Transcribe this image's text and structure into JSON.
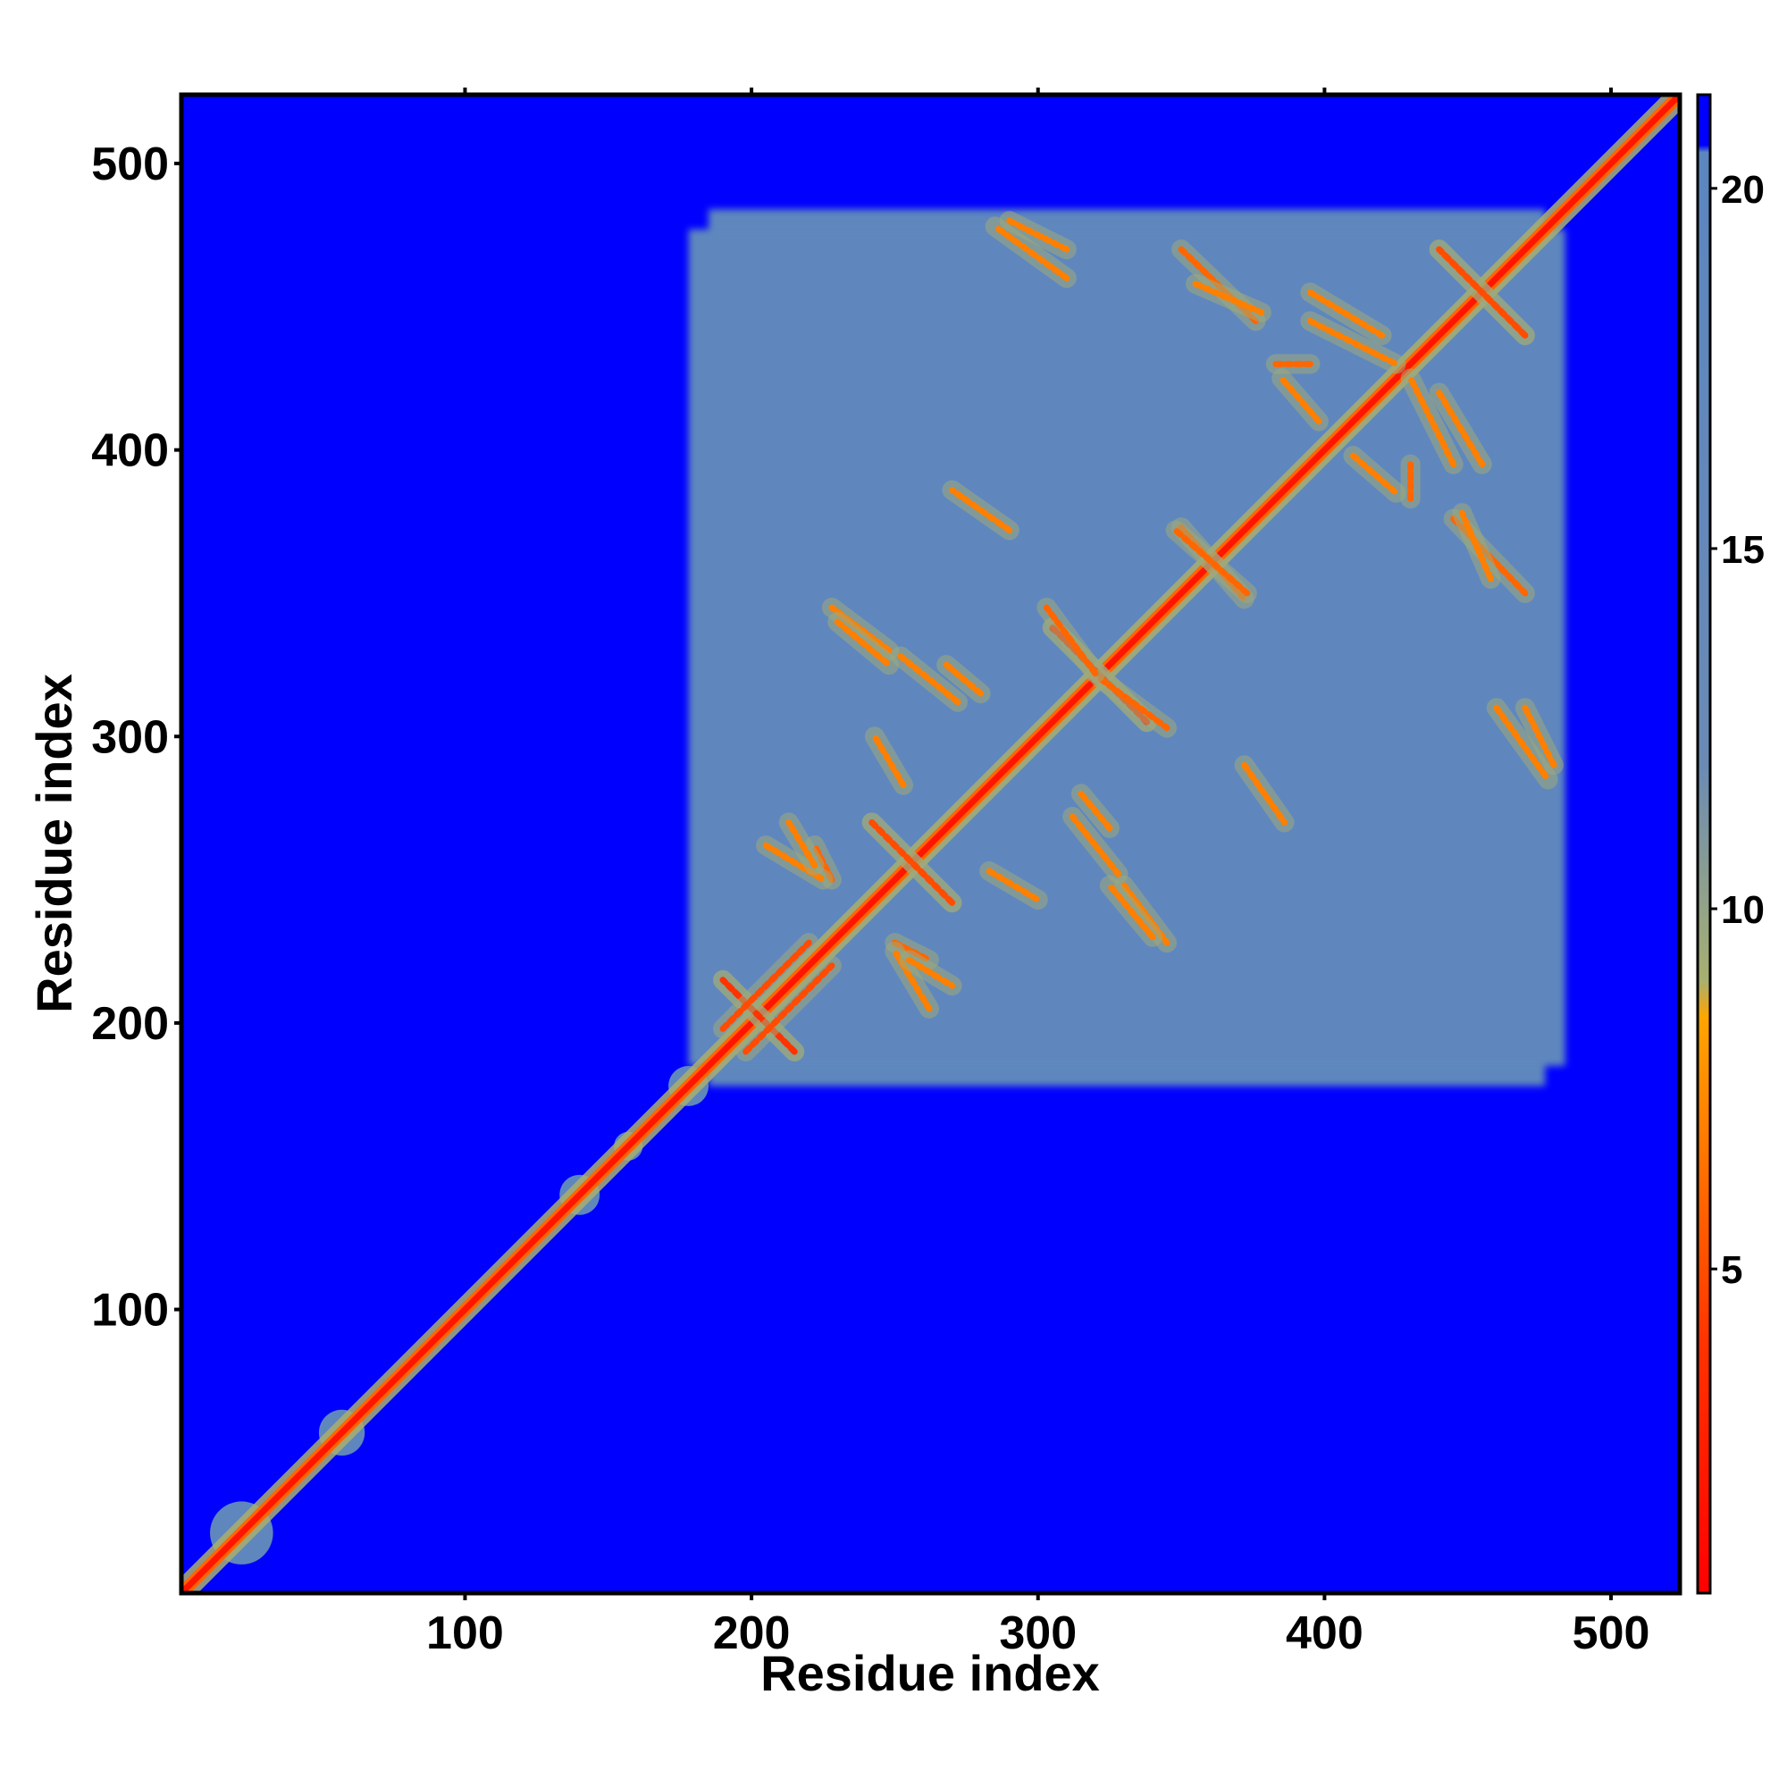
{
  "chart_data": {
    "type": "heatmap",
    "title": "",
    "xlabel": "Residue index",
    "ylabel": "Residue index",
    "xlim": [
      1,
      524
    ],
    "ylim": [
      1,
      524
    ],
    "x_ticks": [
      100,
      200,
      300,
      400,
      500
    ],
    "y_ticks": [
      100,
      200,
      300,
      400,
      500
    ],
    "x_tick_labels": [
      "100",
      "200",
      "300",
      "400",
      "500"
    ],
    "y_tick_labels": [
      "100",
      "200",
      "300",
      "400",
      "500"
    ],
    "grid": false,
    "colorbar": {
      "position": "right",
      "range": [
        0.5,
        21.3
      ],
      "ticks": [
        5,
        10,
        15,
        20
      ],
      "tick_labels": [
        "5",
        "10",
        "15",
        "20"
      ],
      "stops": [
        {
          "value": 0.5,
          "color": "#ff0000"
        },
        {
          "value": 4.0,
          "color": "#ff3300"
        },
        {
          "value": 8.5,
          "color": "#ffa500"
        },
        {
          "value": 9.0,
          "color": "#a8b070"
        },
        {
          "value": 12.0,
          "color": "#6a8ab5"
        },
        {
          "value": 20.5,
          "color": "#5b86c0"
        },
        {
          "value": 20.6,
          "color": "#0000ff"
        },
        {
          "value": 21.3,
          "color": "#0000ff"
        }
      ]
    },
    "background_value": 21,
    "background_color": "#0000ff",
    "domain_region": {
      "x": [
        185,
        477
      ],
      "y": [
        178,
        484
      ],
      "value": 19
    },
    "local_blobs": [
      {
        "center": 22,
        "radius": 11
      },
      {
        "center": 57,
        "radius": 8
      },
      {
        "center": 140,
        "radius": 7
      },
      {
        "center": 157,
        "radius": 5
      },
      {
        "center": 178,
        "radius": 7
      }
    ],
    "diagonal": {
      "value": 2
    },
    "contact_segments": [
      {
        "x": [
          190,
          215
        ],
        "y": [
          215,
          190
        ],
        "value": 4
      },
      {
        "x": [
          198,
          228
        ],
        "y": [
          190,
          220
        ],
        "value": 5
      },
      {
        "x": [
          242,
          270
        ],
        "y": [
          270,
          242
        ],
        "value": 5
      },
      {
        "x": [
          250,
          262
        ],
        "y": [
          228,
          222
        ],
        "value": 6
      },
      {
        "x": [
          305,
          338
        ],
        "y": [
          338,
          305
        ],
        "value": 4
      },
      {
        "x": [
          322,
          345
        ],
        "y": [
          320,
          303
        ],
        "value": 6
      },
      {
        "x": [
          350,
          372
        ],
        "y": [
          373,
          348
        ],
        "value": 6
      },
      {
        "x": [
          440,
          470
        ],
        "y": [
          470,
          440
        ],
        "value": 5
      },
      {
        "x": [
          445,
          470
        ],
        "y": [
          376,
          350
        ],
        "value": 6
      },
      {
        "x": [
          383,
          395
        ],
        "y": [
          430,
          430
        ],
        "value": 6
      },
      {
        "x": [
          372,
          386
        ],
        "y": [
          290,
          270
        ],
        "value": 7
      },
      {
        "x": [
          460,
          478
        ],
        "y": [
          310,
          285
        ],
        "value": 7
      },
      {
        "x": [
          290,
          310
        ],
        "y": [
          480,
          470
        ],
        "value": 7
      },
      {
        "x": [
          312,
          328
        ],
        "y": [
          272,
          252
        ],
        "value": 7
      },
      {
        "x": [
          283,
          300
        ],
        "y": [
          253,
          243
        ],
        "value": 7
      },
      {
        "x": [
          330,
          345
        ],
        "y": [
          248,
          228
        ],
        "value": 7
      },
      {
        "x": [
          230,
          248
        ],
        "y": [
          340,
          325
        ],
        "value": 7
      },
      {
        "x": [
          268,
          280
        ],
        "y": [
          325,
          315
        ],
        "value": 7
      },
      {
        "x": [
          205,
          225
        ],
        "y": [
          262,
          250
        ],
        "value": 7
      },
      {
        "x": [
          255,
          270
        ],
        "y": [
          222,
          213
        ],
        "value": 7
      },
      {
        "x": [
          355,
          378
        ],
        "y": [
          458,
          448
        ],
        "value": 7
      },
      {
        "x": [
          395,
          425
        ],
        "y": [
          445,
          430
        ],
        "value": 7
      },
      {
        "x": [
          395,
          420
        ],
        "y": [
          455,
          440
        ],
        "value": 7
      },
      {
        "x": [
          410,
          425
        ],
        "y": [
          398,
          385
        ],
        "value": 7
      }
    ]
  }
}
